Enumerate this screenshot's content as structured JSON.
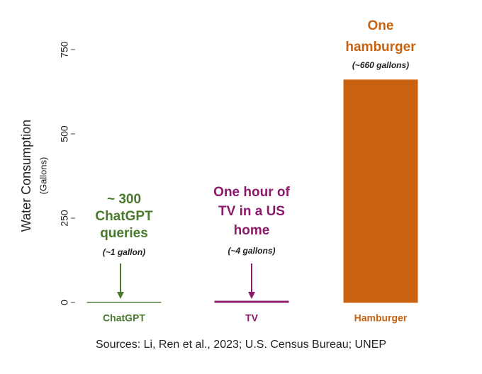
{
  "chart_data": {
    "type": "bar",
    "y_label": "Water Consumption",
    "y_sublabel": "(Gallons)",
    "categories": [
      "ChatGPT",
      "TV",
      "Hamburger"
    ],
    "values": [
      1,
      4,
      660
    ],
    "colors": [
      "#4a7a2e",
      "#8b1a6b",
      "#c8620f"
    ],
    "annotations": [
      {
        "lines": [
          "~ 300",
          "ChatGPT",
          "queries"
        ],
        "note": "(~1 gallon)"
      },
      {
        "lines": [
          "One hour of",
          "TV  in a US",
          "home"
        ],
        "note": "(~4 gallons)"
      },
      {
        "lines": [
          "One",
          "hamburger"
        ],
        "note": "(~660 gallons)"
      }
    ],
    "ylim": [
      0,
      750
    ],
    "yticks": [
      0,
      250,
      500,
      750
    ],
    "source": "Sources: Li, Ren et al., 2023; U.S. Census Bureau; UNEP"
  }
}
